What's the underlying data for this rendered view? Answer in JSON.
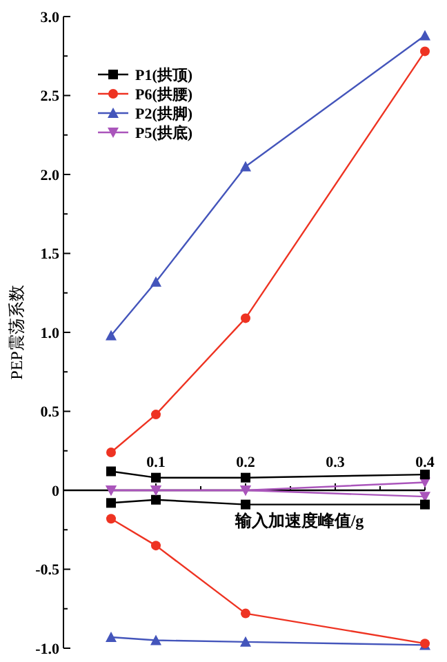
{
  "chart_data": {
    "type": "line",
    "xlabel": "输入加速度峰值/g",
    "ylabel": "PEP震荡系数",
    "xlim": [
      0,
      0.4
    ],
    "xticks": [
      {
        "value": 0.05,
        "label": null
      },
      0.1,
      {
        "value": 0.15,
        "label": null
      },
      0.2,
      {
        "value": 0.25,
        "label": null
      },
      0.3,
      {
        "value": 0.35,
        "label": null
      },
      0.4
    ],
    "ylim": [
      -1.0,
      3.0
    ],
    "yticks": [
      {
        "value": -1.0,
        "label": "-1.0"
      },
      {
        "value": -0.75,
        "label": null
      },
      -0.5,
      {
        "value": -0.25,
        "label": null
      },
      0,
      {
        "value": 0.25,
        "label": null
      },
      0.5,
      {
        "value": 0.75,
        "label": null
      },
      {
        "value": 1.0,
        "label": "1.0"
      },
      {
        "value": 1.25,
        "label": null
      },
      1.5,
      {
        "value": 1.75,
        "label": null
      },
      {
        "value": 2.0,
        "label": "2.0"
      },
      {
        "value": 2.25,
        "label": null
      },
      2.5,
      {
        "value": 2.75,
        "label": null
      },
      {
        "value": 3.0,
        "label": "3.0"
      }
    ],
    "x": [
      0.05,
      0.1,
      0.2,
      0.4
    ],
    "legend": "top left",
    "grid": false,
    "line_style": "solid",
    "series": [
      {
        "name": "P1(拱顶)",
        "color": "#000000",
        "marker": "square",
        "values": [
          0.12,
          0.08,
          0.08,
          0.1
        ]
      },
      {
        "name": "P6(拱腰)",
        "color": "#ee3322",
        "marker": "circle",
        "values": [
          0.24,
          0.48,
          1.09,
          2.78
        ]
      },
      {
        "name": "P2(拱脚)",
        "color": "#4455bb",
        "marker": "triangle",
        "values": [
          0.98,
          1.32,
          2.05,
          2.88
        ]
      },
      {
        "name": "P5(拱底)",
        "color": "#aa55bb",
        "marker": "triangle-down",
        "values": [
          0.0,
          0.0,
          0.0,
          0.05
        ]
      },
      {
        "color": "#000000",
        "marker": "square",
        "values": [
          -0.08,
          -0.06,
          -0.09,
          -0.09
        ]
      },
      {
        "color": "#ee3322",
        "marker": "circle",
        "values": [
          -0.18,
          -0.35,
          -0.78,
          -0.97
        ]
      },
      {
        "color": "#4455bb",
        "marker": "triangle",
        "values": [
          -0.93,
          -0.95,
          -0.96,
          -0.98
        ]
      },
      {
        "color": "#aa55bb",
        "marker": "triangle-down",
        "values": [
          0.0,
          0.0,
          0.0,
          -0.04
        ]
      }
    ]
  }
}
